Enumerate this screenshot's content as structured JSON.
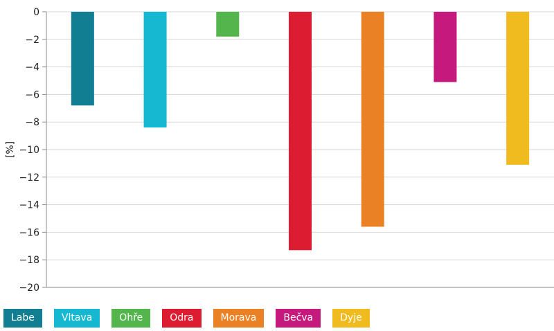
{
  "chart_data": {
    "type": "bar",
    "categories": [
      "Labe",
      "Vltava",
      "Ohře",
      "Odra",
      "Morava",
      "Bečva",
      "Dyje"
    ],
    "values": [
      -6.8,
      -8.4,
      -1.8,
      -17.3,
      -15.6,
      -5.1,
      -11.1
    ],
    "colors": [
      "#127e91",
      "#16b8d1",
      "#53b54c",
      "#dc1c30",
      "#ea8225",
      "#c5197e",
      "#f0bb1e"
    ],
    "title": "",
    "xlabel": "",
    "ylabel": "[%]",
    "ylim": [
      -20,
      0
    ],
    "yticks": [
      0,
      -2,
      -4,
      -6,
      -8,
      -10,
      -12,
      -14,
      -16,
      -18,
      -20
    ],
    "ytick_labels": [
      "0",
      "−2",
      "−4",
      "−6",
      "−8",
      "−10",
      "−12",
      "−14",
      "−16",
      "−18",
      "−20"
    ],
    "grid": true,
    "legend_position": "bottom"
  }
}
